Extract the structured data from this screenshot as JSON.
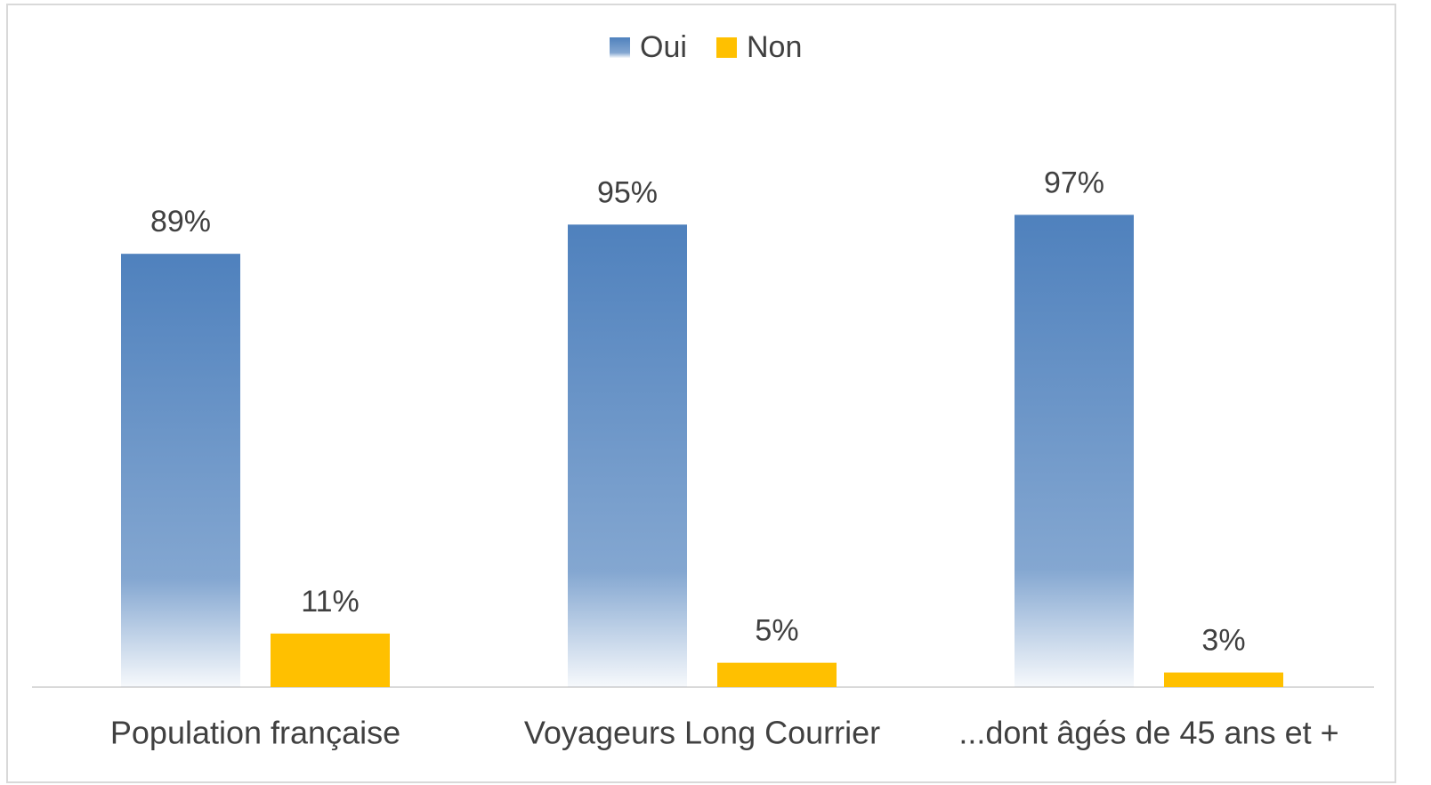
{
  "chart_data": {
    "type": "bar",
    "categories": [
      "Population française",
      "Voyageurs Long Courrier",
      "...dont âgés de 45 ans et +"
    ],
    "series": [
      {
        "name": "Oui",
        "color": "#4f81bd",
        "values": [
          89,
          95,
          97
        ],
        "value_labels": [
          "89%",
          "95%",
          "97%"
        ]
      },
      {
        "name": "Non",
        "color": "#ffc000",
        "values": [
          11,
          5,
          3
        ],
        "value_labels": [
          "11%",
          "5%",
          "3%"
        ]
      }
    ]
  }
}
